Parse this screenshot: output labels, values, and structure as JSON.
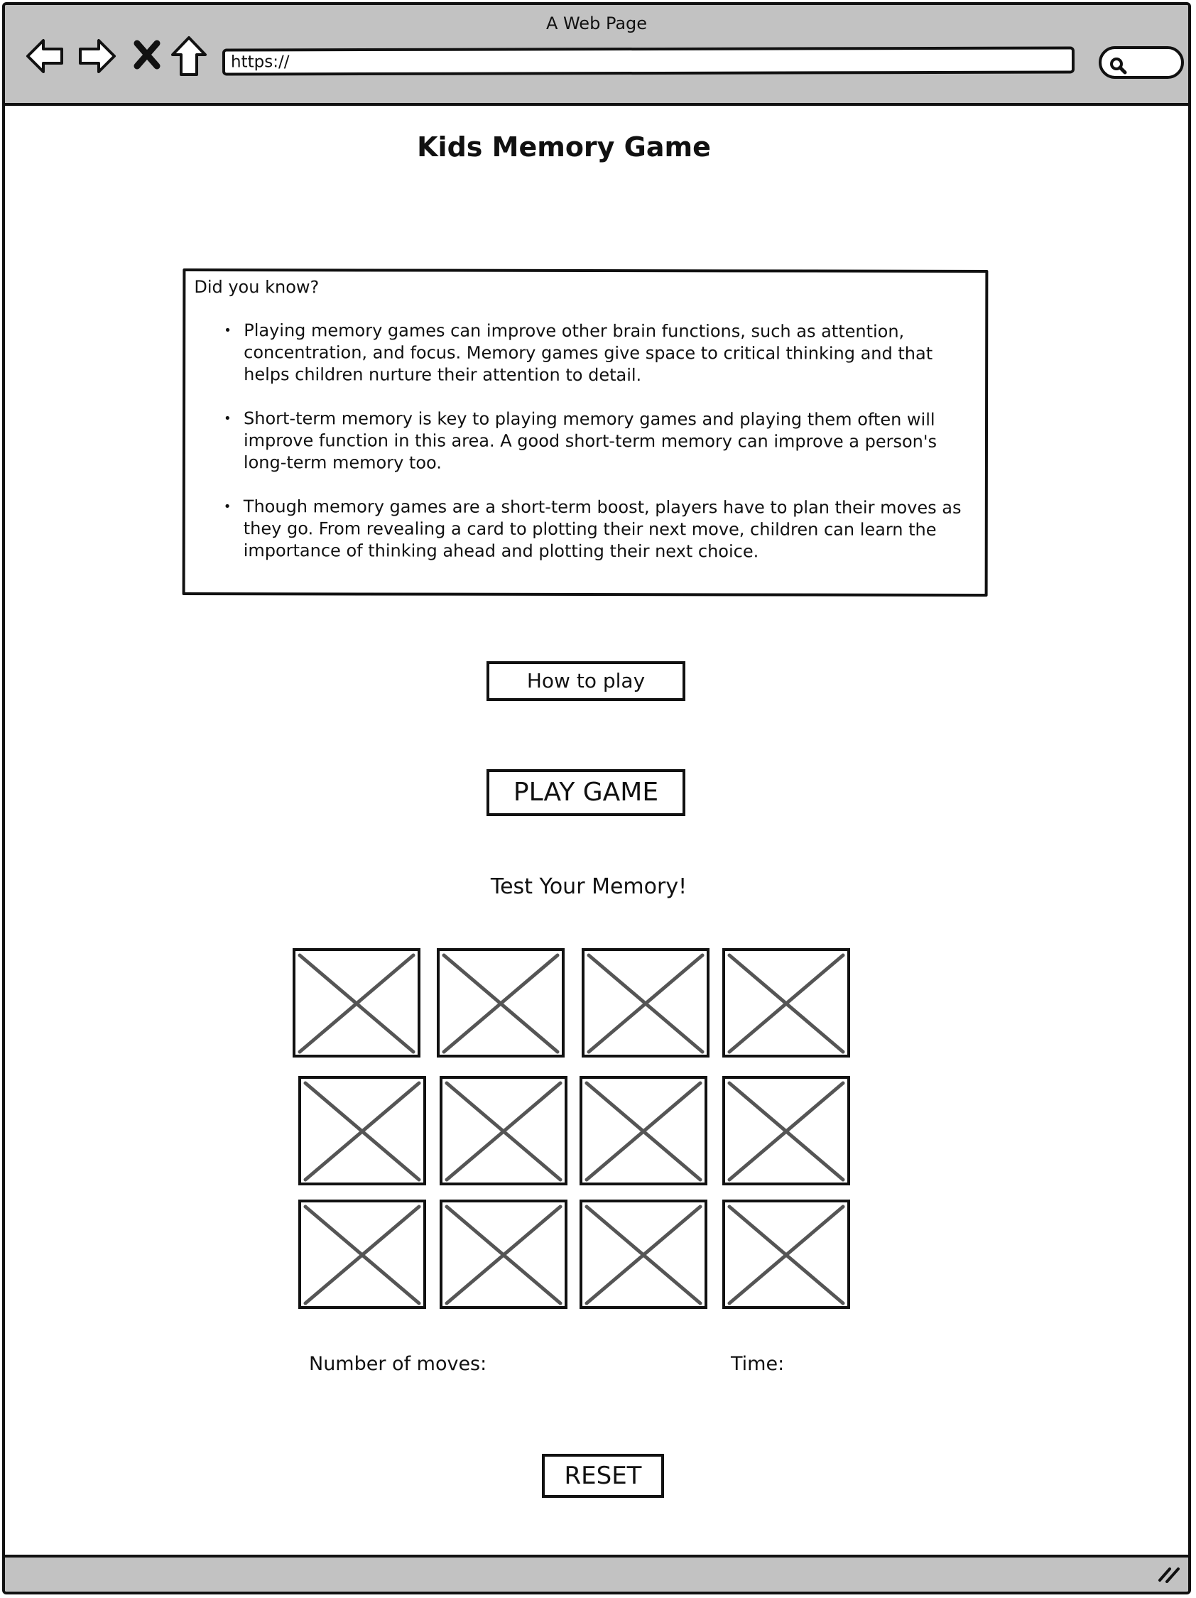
{
  "window": {
    "title": "A Web Page"
  },
  "toolbar": {
    "back_icon": "back-arrow-icon",
    "forward_icon": "forward-arrow-icon",
    "stop_icon": "close-icon",
    "home_icon": "home-icon",
    "url": "https://",
    "search_icon": "search-icon"
  },
  "page": {
    "title": "Kids Memory Game",
    "facts": {
      "heading": "Did you know?",
      "items": [
        {
          "bullet": "•",
          "text": "Playing memory games can improve other brain functions, such as attention, concentration, and focus. Memory games give space to critical thinking and that helps children nurture their attention to detail."
        },
        {
          "bullet": "•",
          "text": "Short-term memory is key to playing memory games and playing them often will improve function in this area. A good short-term memory can improve a person's long-term memory too."
        },
        {
          "bullet": "•",
          "text": "Though memory games are a short-term boost, players have to plan their moves as they go. From revealing a card to plotting their next move, children can learn the importance of thinking ahead and plotting their next choice."
        }
      ]
    },
    "how_to_play_label": "How to play",
    "play_label": "PLAY GAME",
    "game_heading": "Test Your Memory!",
    "card_count": 12,
    "moves_label": "Number of moves:",
    "time_label": "Time:",
    "reset_label": "RESET"
  },
  "colors": {
    "chrome": "#c2c2c2",
    "outline": "#111111",
    "card_cross": "#555555"
  }
}
